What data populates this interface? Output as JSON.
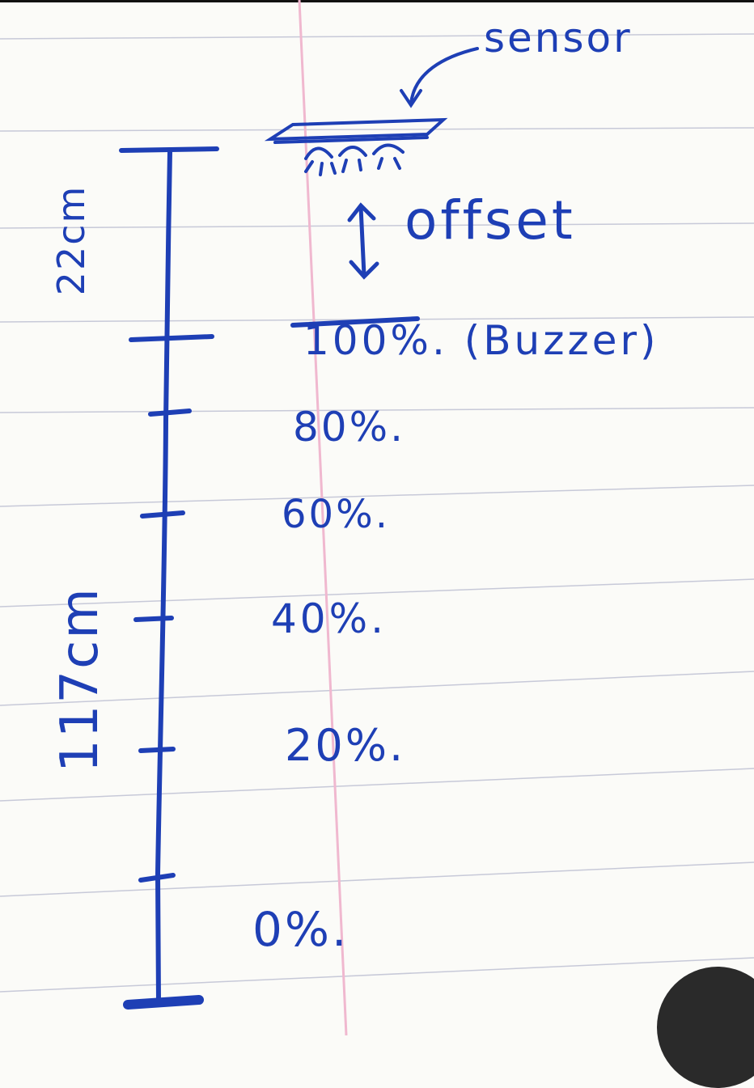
{
  "note": {
    "sensor_label": "sensor",
    "offset_label": "offset",
    "dimension_top": "22cm",
    "dimension_bottom": "117cm",
    "levels": [
      {
        "label": "100%. (Buzzer)"
      },
      {
        "label": "80%."
      },
      {
        "label": "60%."
      },
      {
        "label": "40%."
      },
      {
        "label": "20%."
      },
      {
        "label": "0%."
      }
    ]
  },
  "colors": {
    "ink": "#1e3fb5",
    "paper": "#fbfbf8",
    "ruled_line": "#c7c9d8",
    "margin_line": "#f0b8cf",
    "overlay_button": "#2a2a2a"
  },
  "icons": {
    "sensor": "sensor-icon",
    "pointer_arrow": "curved-arrow-icon",
    "offset_arrow": "double-arrow-icon"
  }
}
